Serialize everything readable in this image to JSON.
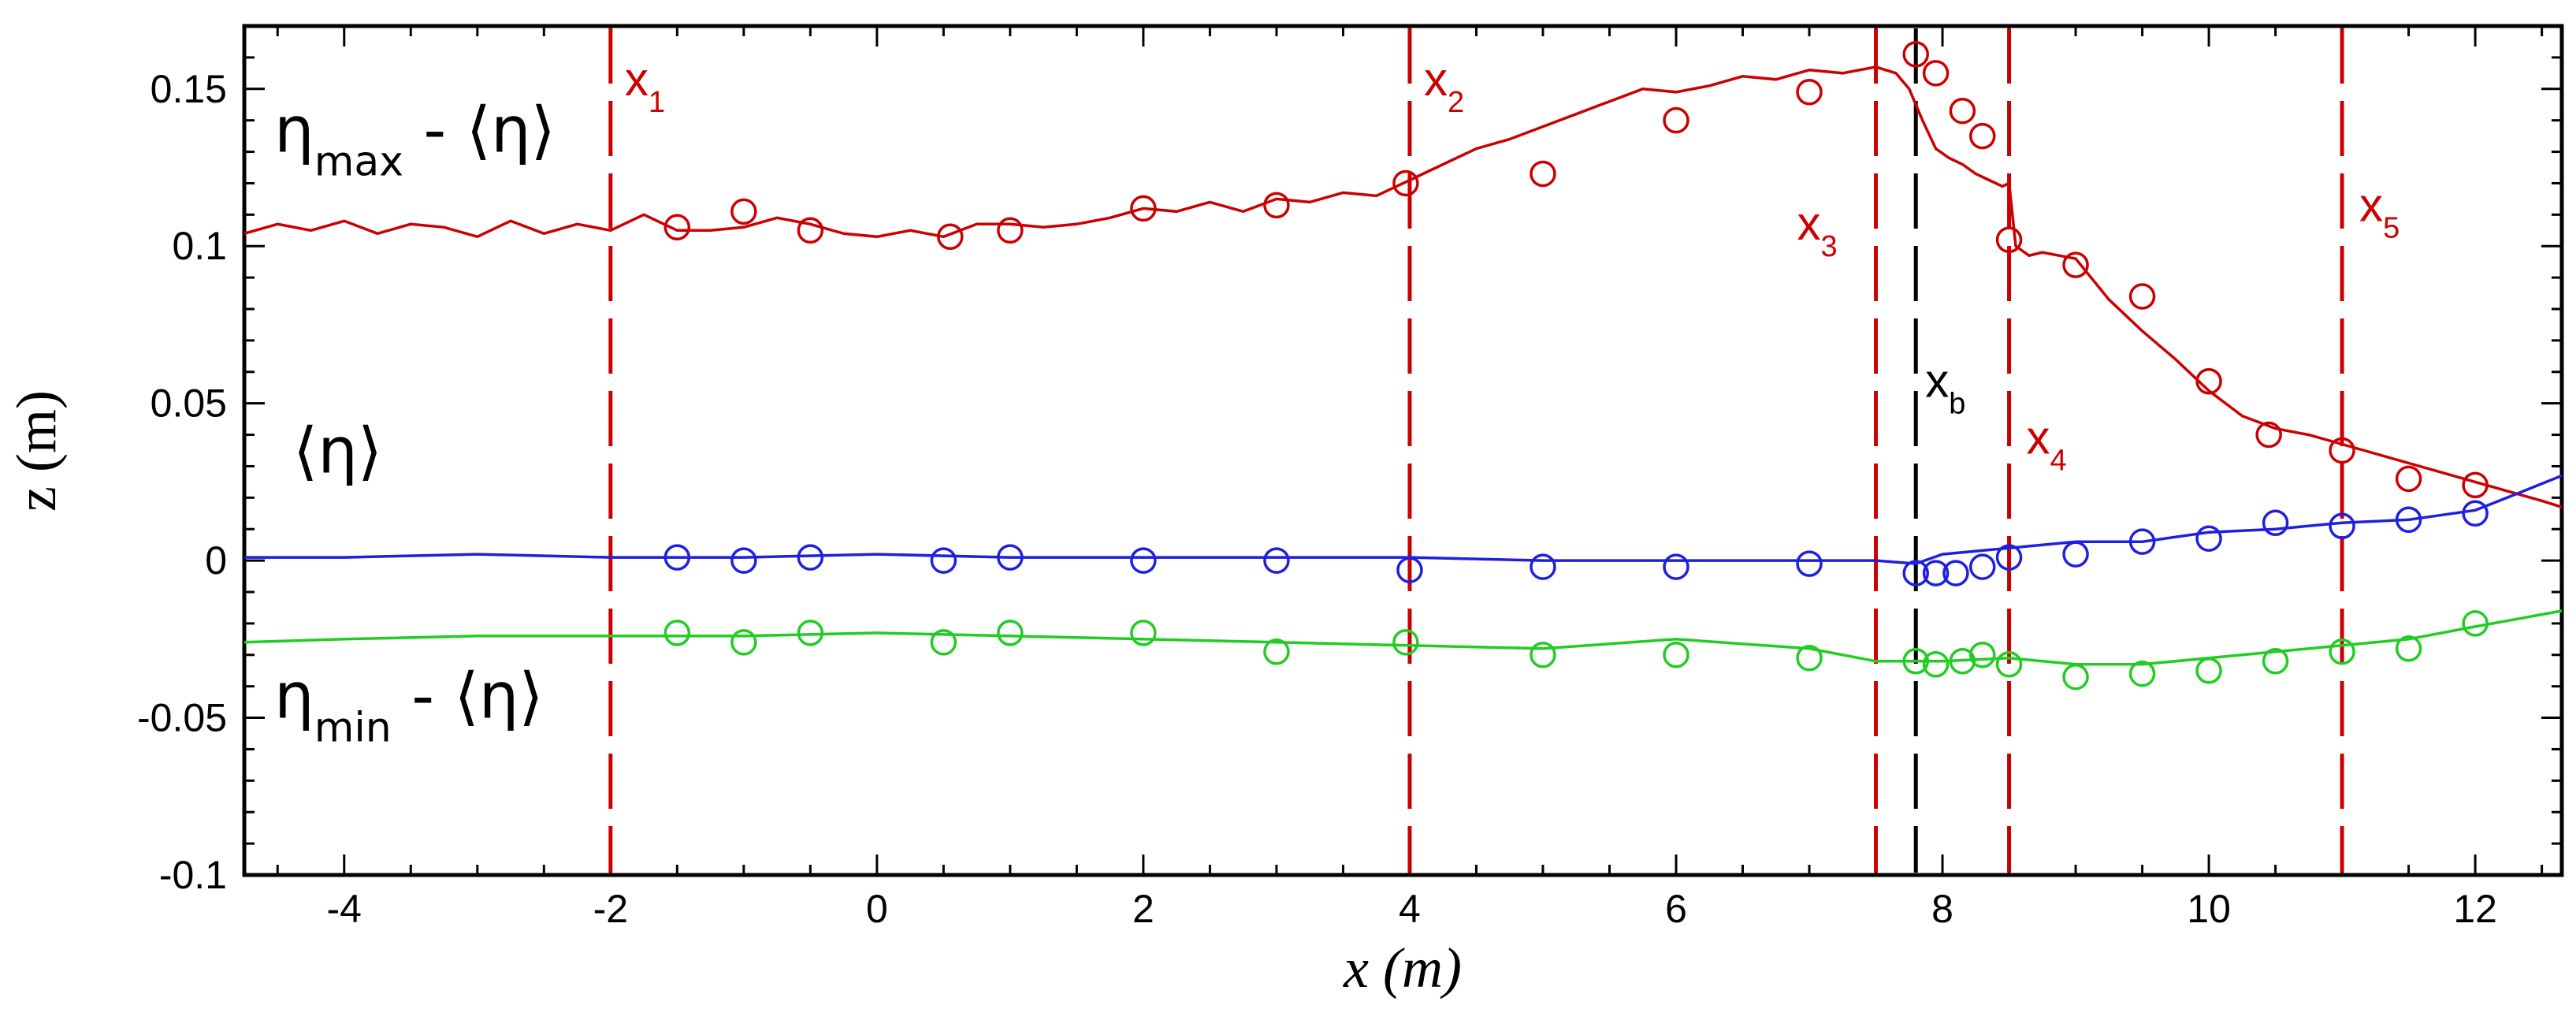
{
  "chart_data": {
    "type": "line",
    "xlabel": "x (m)",
    "ylabel": "z (m)",
    "xlim": [
      -4.75,
      12.65
    ],
    "ylim": [
      -0.1,
      0.17
    ],
    "xticks": [
      -4,
      -2,
      0,
      2,
      4,
      6,
      8,
      10,
      12
    ],
    "xtick_labels": [
      "-4",
      "-2",
      "0",
      "2",
      "4",
      "6",
      "8",
      "10",
      "12"
    ],
    "yticks": [
      -0.1,
      -0.05,
      0,
      0.05,
      0.1,
      0.15
    ],
    "ytick_labels": [
      "-0.1",
      "-0.05",
      "0",
      "0.05",
      "0.1",
      "0.15"
    ],
    "grid": false,
    "series": [
      {
        "name": "ηmax - ⟨η⟩",
        "color": "#cc0000",
        "line": {
          "x": [
            -4.75,
            -4.5,
            -4.25,
            -4.0,
            -3.75,
            -3.5,
            -3.25,
            -3.0,
            -2.75,
            -2.5,
            -2.25,
            -2.0,
            -1.75,
            -1.5,
            -1.25,
            -1.0,
            -0.75,
            -0.5,
            -0.25,
            0.0,
            0.25,
            0.5,
            0.75,
            1.0,
            1.25,
            1.5,
            1.75,
            2.0,
            2.25,
            2.5,
            2.75,
            3.0,
            3.25,
            3.5,
            3.75,
            4.0,
            4.25,
            4.5,
            4.75,
            5.0,
            5.25,
            5.5,
            5.75,
            6.0,
            6.25,
            6.5,
            6.75,
            7.0,
            7.25,
            7.5,
            7.65,
            7.75,
            7.85,
            7.95,
            8.05,
            8.15,
            8.25,
            8.35,
            8.45,
            8.5,
            8.55,
            8.65,
            8.75,
            9.0,
            9.25,
            9.5,
            9.75,
            10.0,
            10.25,
            10.5,
            10.75,
            11.0,
            11.25,
            11.5,
            11.75,
            12.0,
            12.25,
            12.5,
            12.65
          ],
          "y": [
            0.104,
            0.107,
            0.105,
            0.108,
            0.104,
            0.107,
            0.106,
            0.103,
            0.108,
            0.104,
            0.107,
            0.105,
            0.11,
            0.105,
            0.105,
            0.106,
            0.109,
            0.107,
            0.104,
            0.103,
            0.105,
            0.103,
            0.107,
            0.107,
            0.106,
            0.107,
            0.109,
            0.112,
            0.111,
            0.114,
            0.111,
            0.115,
            0.114,
            0.117,
            0.116,
            0.121,
            0.126,
            0.131,
            0.134,
            0.138,
            0.142,
            0.146,
            0.15,
            0.149,
            0.151,
            0.154,
            0.153,
            0.156,
            0.155,
            0.157,
            0.155,
            0.15,
            0.14,
            0.131,
            0.128,
            0.126,
            0.123,
            0.121,
            0.119,
            0.12,
            0.1,
            0.097,
            0.098,
            0.096,
            0.083,
            0.073,
            0.064,
            0.054,
            0.046,
            0.042,
            0.04,
            0.037,
            0.034,
            0.031,
            0.028,
            0.025,
            0.022,
            0.019,
            0.017
          ]
        },
        "markers": {
          "x": [
            -1.5,
            -1.0,
            -0.5,
            0.55,
            1.0,
            2.0,
            3.0,
            3.97,
            5.0,
            6.0,
            7.0,
            7.8,
            7.95,
            8.15,
            8.3,
            8.5,
            9.0,
            9.5,
            10.0,
            10.45,
            11.0,
            11.5,
            12.0
          ],
          "y": [
            0.106,
            0.111,
            0.105,
            0.103,
            0.105,
            0.112,
            0.113,
            0.12,
            0.123,
            0.14,
            0.149,
            0.161,
            0.155,
            0.143,
            0.135,
            0.102,
            0.094,
            0.084,
            0.057,
            0.04,
            0.035,
            0.026,
            0.024
          ]
        }
      },
      {
        "name": "⟨η⟩",
        "color": "#1f1fe0",
        "line": {
          "x": [
            -4.75,
            -4.0,
            -3.0,
            -2.0,
            -1.0,
            0.0,
            1.0,
            2.0,
            3.0,
            4.0,
            5.0,
            6.0,
            7.0,
            7.5,
            7.8,
            8.0,
            8.5,
            9.0,
            9.5,
            10.0,
            10.5,
            11.0,
            11.5,
            12.0,
            12.3,
            12.65
          ],
          "y": [
            0.001,
            0.001,
            0.002,
            0.001,
            0.001,
            0.002,
            0.001,
            0.001,
            0.001,
            0.001,
            0.0,
            0.0,
            0.0,
            0.0,
            -0.001,
            0.002,
            0.004,
            0.006,
            0.006,
            0.009,
            0.01,
            0.012,
            0.013,
            0.016,
            0.021,
            0.027
          ]
        },
        "markers": {
          "x": [
            -1.5,
            -1.0,
            -0.5,
            0.5,
            1.0,
            2.0,
            3.0,
            4.0,
            5.0,
            6.0,
            7.0,
            7.8,
            7.95,
            8.1,
            8.3,
            8.5,
            9.0,
            9.5,
            10.0,
            10.5,
            11.0,
            11.5,
            12.0
          ],
          "y": [
            0.001,
            0.0,
            0.001,
            0.0,
            0.001,
            0.0,
            0.0,
            -0.003,
            -0.002,
            -0.002,
            -0.001,
            -0.004,
            -0.004,
            -0.004,
            -0.002,
            0.001,
            0.002,
            0.006,
            0.007,
            0.012,
            0.011,
            0.013,
            0.015
          ]
        }
      },
      {
        "name": "ηmin - ⟨η⟩",
        "color": "#22cc22",
        "line": {
          "x": [
            -4.75,
            -4.0,
            -3.0,
            -2.0,
            -1.0,
            0.0,
            1.0,
            2.0,
            3.0,
            4.0,
            5.0,
            6.0,
            7.0,
            7.5,
            8.0,
            8.5,
            9.0,
            9.5,
            10.0,
            10.5,
            11.0,
            11.5,
            12.0,
            12.65
          ],
          "y": [
            -0.026,
            -0.025,
            -0.024,
            -0.024,
            -0.024,
            -0.023,
            -0.024,
            -0.025,
            -0.026,
            -0.027,
            -0.028,
            -0.025,
            -0.028,
            -0.032,
            -0.032,
            -0.031,
            -0.033,
            -0.033,
            -0.031,
            -0.029,
            -0.027,
            -0.025,
            -0.021,
            -0.016
          ]
        },
        "markers": {
          "x": [
            -1.5,
            -1.0,
            -0.5,
            0.5,
            1.0,
            2.0,
            3.0,
            3.97,
            5.0,
            6.0,
            7.0,
            7.8,
            7.95,
            8.15,
            8.3,
            8.5,
            9.0,
            9.5,
            10.0,
            10.5,
            11.0,
            11.5,
            12.0
          ],
          "y": [
            -0.023,
            -0.026,
            -0.023,
            -0.026,
            -0.023,
            -0.023,
            -0.029,
            -0.026,
            -0.03,
            -0.03,
            -0.031,
            -0.032,
            -0.033,
            -0.032,
            -0.03,
            -0.033,
            -0.037,
            -0.036,
            -0.035,
            -0.032,
            -0.029,
            -0.028,
            -0.02
          ]
        }
      }
    ],
    "vlines": [
      {
        "x": -2.0,
        "color": "#cc0000",
        "label": "x",
        "sub": "1"
      },
      {
        "x": 4.0,
        "color": "#cc0000",
        "label": "x",
        "sub": "2"
      },
      {
        "x": 7.5,
        "color": "#cc0000",
        "label": "x",
        "sub": "3"
      },
      {
        "x": 7.8,
        "color": "#000000",
        "label": "x",
        "sub": "b"
      },
      {
        "x": 8.5,
        "color": "#cc0000",
        "label": "x",
        "sub": "4"
      },
      {
        "x": 11.0,
        "color": "#cc0000",
        "label": "x",
        "sub": "5"
      }
    ],
    "annotations": {
      "max": {
        "main": "η",
        "sub": "max",
        "rest": " - ⟨η⟩"
      },
      "mean": {
        "text": "⟨η⟩"
      },
      "min": {
        "main": "η",
        "sub": "min",
        "rest": " - ⟨η⟩"
      }
    }
  }
}
